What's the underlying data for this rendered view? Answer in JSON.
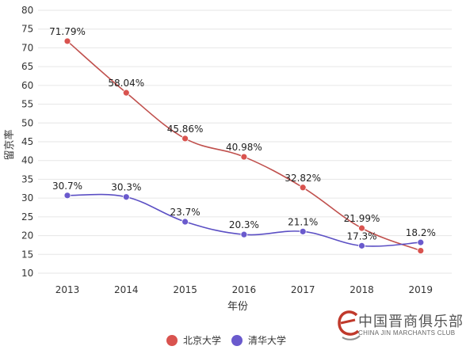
{
  "chart_data": {
    "type": "line",
    "title": "",
    "xlabel": "年份",
    "ylabel": "留京率",
    "x": [
      "2013",
      "2014",
      "2015",
      "2016",
      "2017",
      "2018",
      "2019"
    ],
    "ylim": [
      10,
      80
    ],
    "yticks": [
      "10",
      "15",
      "20",
      "25",
      "30",
      "35",
      "40",
      "45",
      "50",
      "55",
      "60",
      "65",
      "70",
      "75",
      "80"
    ],
    "grid": true,
    "legend_position": "bottom",
    "series": [
      {
        "name": "北京大学",
        "color": "#d9534f",
        "line_color": "#c0504d",
        "values": [
          71.79,
          58.04,
          45.86,
          40.98,
          32.82,
          21.99,
          16.0
        ],
        "labels": [
          "71.79%",
          "58.04%",
          "45.86%",
          "40.98%",
          "32.82%",
          "21.99%",
          ""
        ]
      },
      {
        "name": "清华大学",
        "color": "#6a5acd",
        "line_color": "#5b4fc4",
        "values": [
          30.7,
          30.3,
          23.7,
          20.3,
          21.1,
          17.3,
          18.2
        ],
        "labels": [
          "30.7%",
          "30.3%",
          "23.7%",
          "20.3%",
          "21.1%",
          "17.3%",
          "18.2%"
        ]
      }
    ]
  },
  "watermark": {
    "chinese": "中国晋商俱乐部",
    "english": "CHINA JIN MARCHANTS CLUB"
  }
}
